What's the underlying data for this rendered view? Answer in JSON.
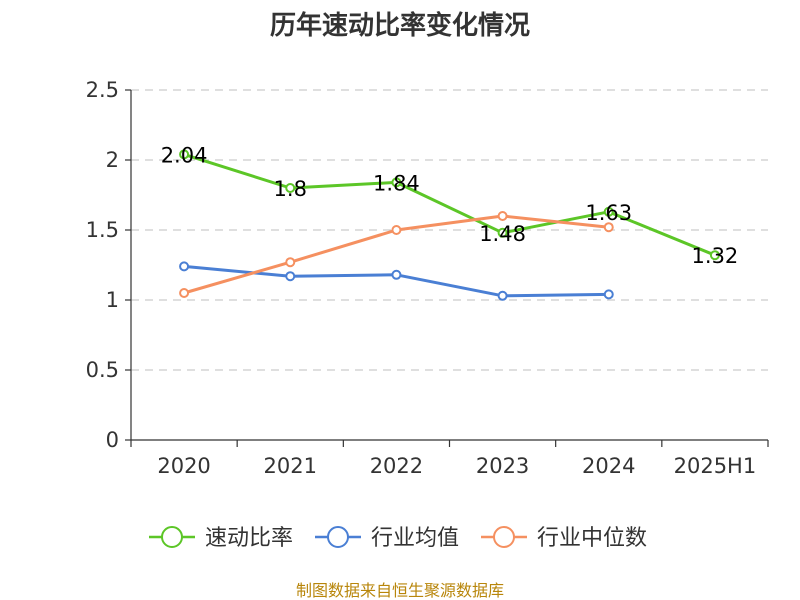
{
  "chart_data": {
    "type": "line",
    "title": "历年速动比率变化情况",
    "categories": [
      "2020",
      "2021",
      "2022",
      "2023",
      "2024",
      "2025H1"
    ],
    "ylim": [
      0,
      2.5
    ],
    "yticks": [
      "0",
      "0.5",
      "1",
      "1.5",
      "2",
      "2.5"
    ],
    "grid": true,
    "legend_position": "bottom",
    "series": [
      {
        "name": "速动比率",
        "color": "#5cc627",
        "values": [
          2.04,
          1.8,
          1.84,
          1.48,
          1.63,
          1.32
        ],
        "labels": [
          "2.04",
          "1.8",
          "1.84",
          "1.48",
          "1.63",
          "1.32"
        ]
      },
      {
        "name": "行业均值",
        "color": "#4a7fd4",
        "values": [
          1.24,
          1.17,
          1.18,
          1.03,
          1.04,
          null
        ]
      },
      {
        "name": "行业中位数",
        "color": "#f59060",
        "values": [
          1.05,
          1.27,
          1.5,
          1.6,
          1.52,
          null
        ]
      }
    ],
    "source": "制图数据来自恒生聚源数据库"
  }
}
